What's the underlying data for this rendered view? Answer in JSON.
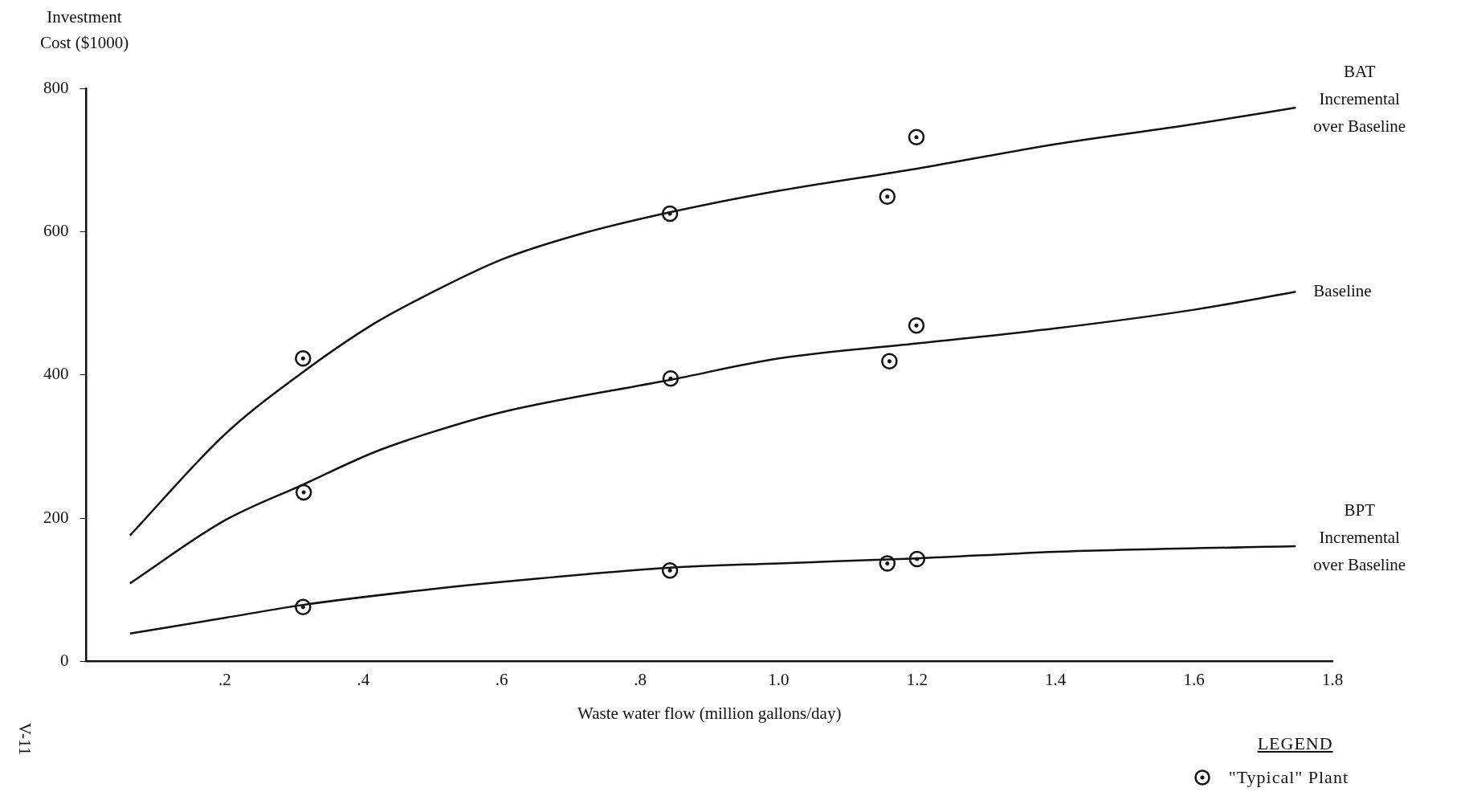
{
  "chart_data": {
    "type": "line",
    "ylabel": "Investment\nCost ($1000)",
    "xlabel": "Waste water flow (million gallons/day)",
    "legend_title": "LEGEND",
    "legend": "bottom right",
    "annotations": [
      "V-11"
    ],
    "xlim": [
      0,
      1.8
    ],
    "xticks": [
      {
        "value": 0.2,
        "label": ".2"
      },
      {
        "value": 0.4,
        "label": ".4"
      },
      {
        "value": 0.6,
        "label": ".6"
      },
      {
        "value": 0.8,
        "label": ".8"
      },
      {
        "value": 1.0,
        "label": "1.0"
      },
      {
        "value": 1.2,
        "label": "1.2"
      },
      {
        "value": 1.4,
        "label": "1.4"
      },
      {
        "value": 1.6,
        "label": "1.6"
      },
      {
        "value": 1.8,
        "label": "1.8"
      }
    ],
    "ylim": [
      0,
      800
    ],
    "yticks": [
      0,
      200,
      400,
      600,
      800
    ],
    "grid": false,
    "marker": "none",
    "line_style": "solid",
    "series": [
      {
        "name": "BAT\nIncremental\nover Baseline",
        "color": "#111111",
        "x": [
          0.063,
          0.2,
          0.313,
          0.418,
          0.499,
          0.6,
          0.715,
          0.843,
          1.0,
          1.2,
          1.4,
          1.6,
          1.747
        ],
        "values": [
          176,
          317,
          404,
          473,
          515,
          561,
          597,
          627,
          657,
          688,
          722,
          750,
          773
        ]
      },
      {
        "name": "Baseline",
        "color": "#111111",
        "x": [
          0.063,
          0.2,
          0.313,
          0.418,
          0.499,
          0.6,
          0.843,
          1.0,
          1.2,
          1.4,
          1.6,
          1.747
        ],
        "values": [
          109,
          197,
          247,
          293,
          320,
          348,
          393,
          423,
          444,
          465,
          491,
          516
        ]
      },
      {
        "name": "BPT\nIncremental\nover Baseline",
        "color": "#111111",
        "x": [
          0.063,
          0.2,
          0.313,
          0.499,
          0.6,
          0.843,
          1.0,
          1.2,
          1.4,
          1.747
        ],
        "values": [
          39,
          61,
          79,
          101,
          111,
          131,
          137,
          144,
          153,
          161
        ]
      },
      {
        "name": "\"Typical\" Plant",
        "type": "scatter",
        "marker": "circle",
        "color": "#111111",
        "x": [
          0.313,
          0.843,
          1.157,
          1.199,
          0.314,
          0.844,
          1.16,
          1.199,
          0.313,
          0.843,
          1.157,
          1.2
        ],
        "values": [
          423,
          625,
          649,
          732,
          236,
          395,
          419,
          469,
          76,
          127,
          137,
          143
        ]
      }
    ]
  }
}
